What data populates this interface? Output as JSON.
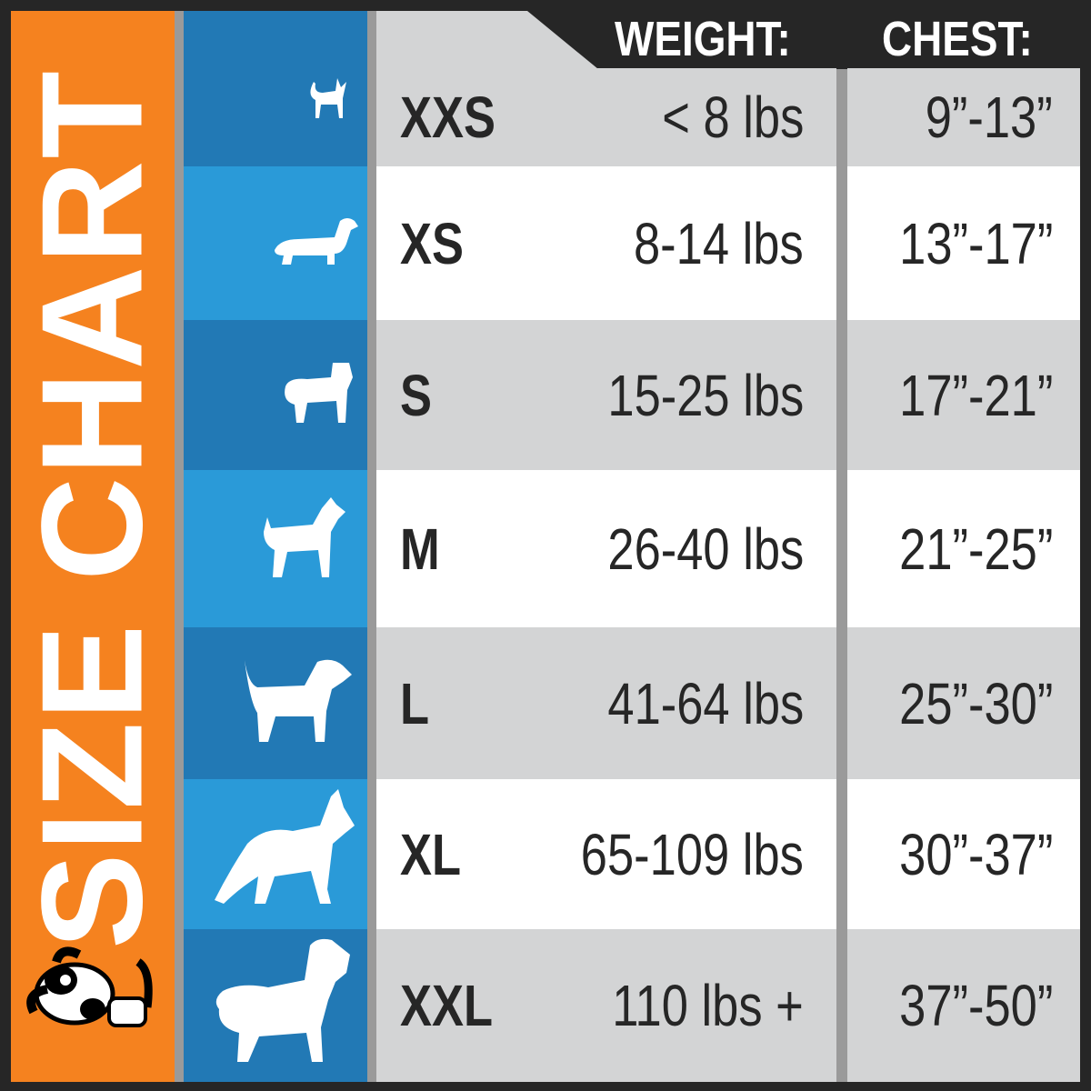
{
  "title": "SIZE CHART",
  "headers": {
    "weight": "WEIGHT:",
    "chest": "CHEST:"
  },
  "colors": {
    "orange": "#f5821f",
    "blue_dark": "#2279b5",
    "blue_light": "#2a9ad8",
    "row_gray": "#d3d4d5",
    "text": "#262626"
  },
  "rows": [
    {
      "size": "XXS",
      "weight": "< 8 lbs",
      "chest": "9”-13”",
      "icon": "chihuahua-icon"
    },
    {
      "size": "XS",
      "weight": "8-14 lbs",
      "chest": "13”-17”",
      "icon": "dachshund-icon"
    },
    {
      "size": "S",
      "weight": "15-25 lbs",
      "chest": "17”-21”",
      "icon": "pug-icon"
    },
    {
      "size": "M",
      "weight": "26-40 lbs",
      "chest": "21”-25”",
      "icon": "schnauzer-icon"
    },
    {
      "size": "L",
      "weight": "41-64 lbs",
      "chest": "25”-30”",
      "icon": "beagle-icon"
    },
    {
      "size": "XL",
      "weight": "65-109 lbs",
      "chest": "30”-37”",
      "icon": "german-shepherd-icon"
    },
    {
      "size": "XXL",
      "weight": "110 lbs +",
      "chest": "37”-50”",
      "icon": "mastiff-icon"
    }
  ]
}
